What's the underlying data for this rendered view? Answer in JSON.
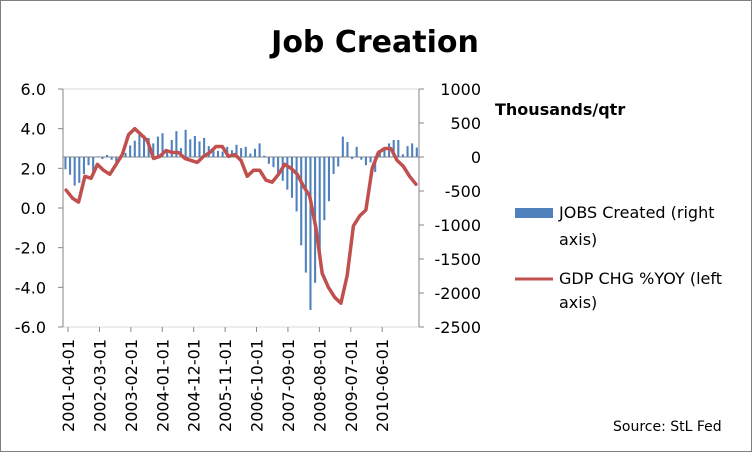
{
  "chart_data": {
    "type": "bar+line",
    "title": "Job Creation",
    "right_axis_label": "Thousands/qtr",
    "source": "Source: StL Fed",
    "left_axis": {
      "min": -6,
      "max": 6,
      "step": 2,
      "tick_labels": [
        "6.0",
        "4.0",
        "2.0",
        "0.0",
        "-2.0",
        "-4.0",
        "-6.0"
      ]
    },
    "right_axis": {
      "min": -2500,
      "max": 1000,
      "step": 500,
      "tick_labels": [
        "1000",
        "500",
        "0",
        "-500",
        "-1000",
        "-1500",
        "-2000",
        "-2500"
      ]
    },
    "x_tick_labels": [
      "2001-04-01",
      "2002-03-01",
      "2003-02-01",
      "2004-01-01",
      "2004-12-01",
      "2005-11-01",
      "2006-10-01",
      "2007-09-01",
      "2008-08-01",
      "2009-07-01",
      "2010-06-01"
    ],
    "grid": false,
    "legend_position": "right",
    "series": [
      {
        "name": "JOBS Created (right axis)",
        "axis": "right",
        "kind": "bar",
        "color": "#4f81bd",
        "values": [
          -180,
          -260,
          -420,
          -380,
          -250,
          -120,
          -210,
          10,
          -30,
          30,
          -40,
          -80,
          20,
          60,
          170,
          240,
          380,
          320,
          280,
          200,
          300,
          350,
          100,
          250,
          380,
          130,
          400,
          260,
          310,
          230,
          280,
          160,
          100,
          90,
          80,
          150,
          100,
          180,
          130,
          150,
          50,
          120,
          200,
          20,
          -100,
          -150,
          -250,
          -350,
          -480,
          -600,
          -800,
          -1300,
          -1700,
          -2250,
          -1850,
          -1400,
          -930,
          -650,
          -250,
          -140,
          300,
          220,
          -30,
          150,
          -40,
          -120,
          -80,
          -220,
          100,
          120,
          200,
          250,
          250,
          40,
          160,
          200,
          140
        ]
      },
      {
        "name": "GDP CHG %YOY (left axis)",
        "axis": "left",
        "kind": "line",
        "color": "#c0504d",
        "values": [
          0.9,
          0.5,
          0.3,
          1.6,
          1.5,
          2.2,
          1.9,
          1.7,
          2.2,
          2.7,
          3.7,
          4.0,
          3.7,
          3.4,
          2.5,
          2.6,
          2.9,
          2.8,
          2.8,
          2.5,
          2.4,
          2.3,
          2.6,
          2.8,
          3.1,
          3.1,
          2.6,
          2.7,
          2.4,
          1.6,
          1.9,
          1.9,
          1.4,
          1.3,
          1.7,
          2.2,
          2.0,
          1.7,
          1.1,
          0.6,
          -1.0,
          -3.3,
          -4.0,
          -4.5,
          -4.8,
          -3.4,
          -0.9,
          -0.4,
          -0.1,
          2.0,
          2.8,
          3.0,
          3.0,
          2.4,
          2.1,
          1.6,
          1.2
        ]
      }
    ]
  }
}
